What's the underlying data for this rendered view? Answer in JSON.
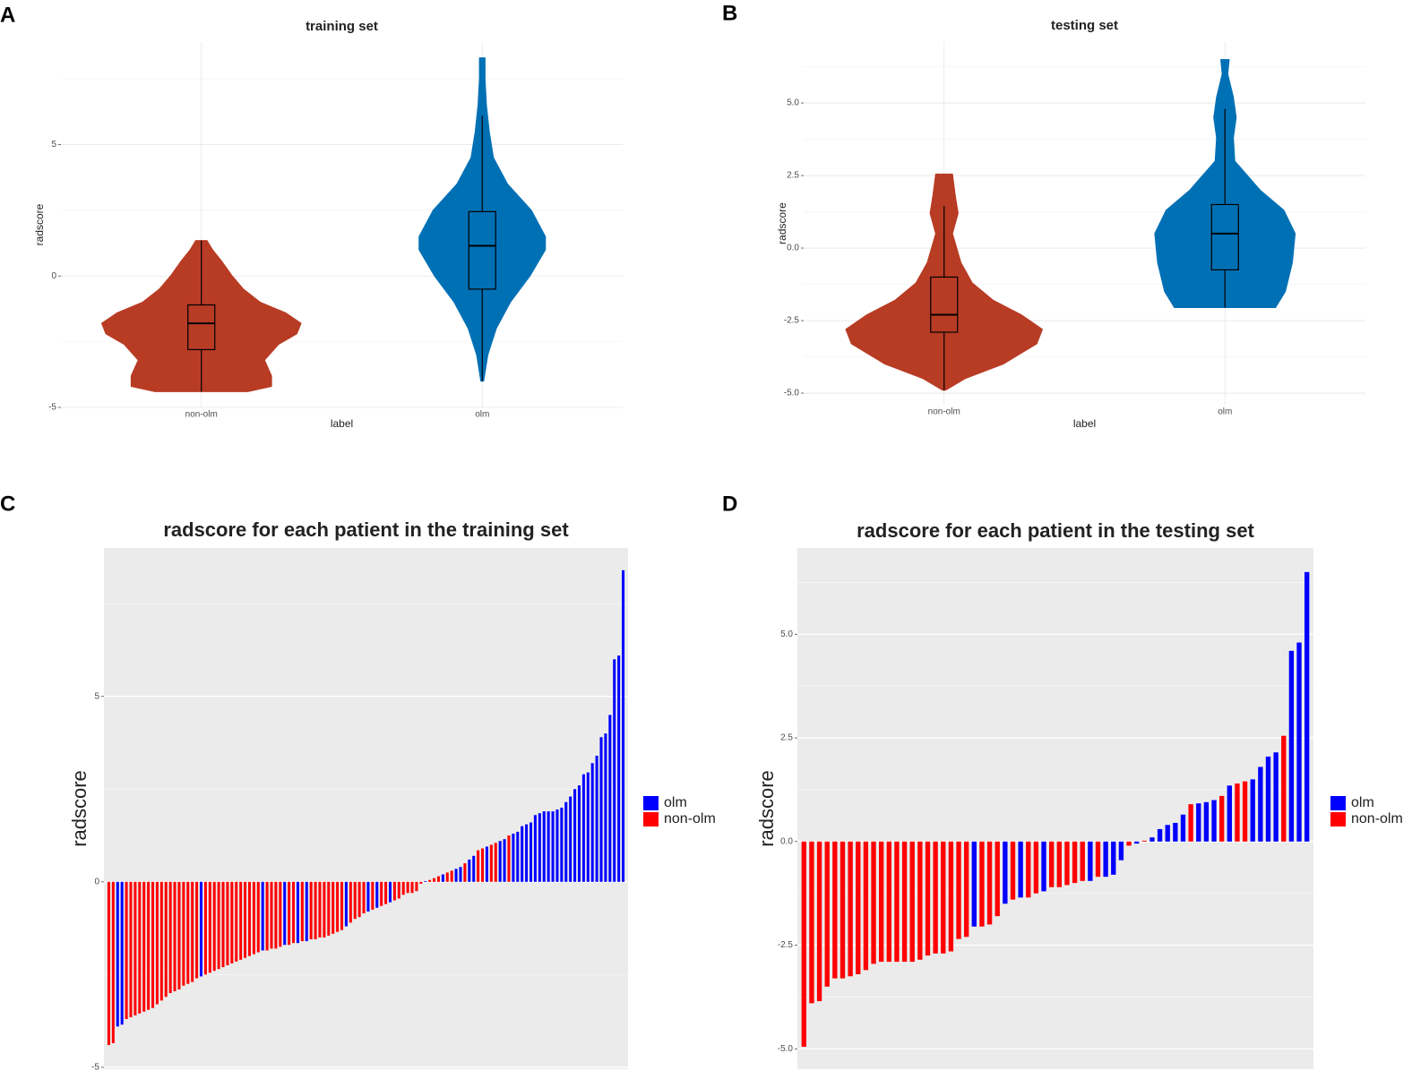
{
  "chart_data": [
    {
      "type": "violin",
      "panel": "A",
      "title": "training set",
      "xlabel": "label",
      "ylabel": "radscore",
      "categories": [
        "non-olm",
        "olm"
      ],
      "colors": [
        "#b83b24",
        "#0070b5"
      ],
      "ylim": [
        -5,
        8.9
      ],
      "yticks": [
        -5,
        0,
        5
      ],
      "minor_yticks": [
        -2.5,
        2.5,
        7.5
      ],
      "grid": true,
      "boxes": [
        {
          "whisker_low": -4.4,
          "q1": -2.8,
          "median": -1.8,
          "q3": -1.1,
          "whisker_high": 1.35
        },
        {
          "whisker_low": -4.0,
          "q1": -0.5,
          "median": 1.15,
          "q3": 2.45,
          "whisker_high": 6.1
        }
      ],
      "violins": [
        {
          "y": [
            -4.4,
            -4.2,
            -3.8,
            -3.2,
            -2.6,
            -2.2,
            -1.8,
            -1.4,
            -1.0,
            -0.5,
            0,
            0.6,
            1.0,
            1.35
          ],
          "width": [
            0.33,
            0.5,
            0.5,
            0.45,
            0.55,
            0.68,
            0.71,
            0.6,
            0.42,
            0.3,
            0.22,
            0.14,
            0.08,
            0.04
          ]
        },
        {
          "y": [
            -4.0,
            -3,
            -2,
            -1,
            0,
            1,
            1.5,
            2.5,
            3.5,
            4.5,
            5.5,
            6.5,
            7.5,
            8.3
          ],
          "width": [
            0.01,
            0.04,
            0.1,
            0.2,
            0.34,
            0.45,
            0.45,
            0.35,
            0.18,
            0.08,
            0.05,
            0.03,
            0.02,
            0.02
          ]
        }
      ]
    },
    {
      "type": "violin",
      "panel": "B",
      "title": "testing set",
      "xlabel": "label",
      "ylabel": "radscore",
      "categories": [
        "non-olm",
        "olm"
      ],
      "colors": [
        "#b83b24",
        "#0070b5"
      ],
      "ylim": [
        -5.4,
        7.1
      ],
      "yticks": [
        {
          "value": -5,
          "label": "-5.0"
        },
        {
          "value": -2.5,
          "label": "-2.5"
        },
        {
          "value": 0,
          "label": "0.0"
        },
        {
          "value": 2.5,
          "label": "2.5"
        },
        {
          "value": 5,
          "label": "5.0"
        }
      ],
      "minor_yticks": [
        -3.75,
        -1.25,
        1.25,
        3.75,
        6.25
      ],
      "grid": true,
      "boxes": [
        {
          "whisker_low": -4.9,
          "q1": -2.9,
          "median": -2.3,
          "q3": -1.0,
          "whisker_high": 1.45
        },
        {
          "whisker_low": -2.05,
          "q1": -0.75,
          "median": 0.5,
          "q3": 1.5,
          "whisker_high": 4.8
        }
      ],
      "violins": [
        {
          "y": [
            -4.9,
            -4.5,
            -4.0,
            -3.3,
            -2.8,
            -2.3,
            -1.8,
            -1.2,
            -0.5,
            0,
            0.5,
            1.2,
            1.8,
            2.55
          ],
          "width": [
            0.01,
            0.15,
            0.42,
            0.66,
            0.7,
            0.55,
            0.35,
            0.2,
            0.12,
            0.09,
            0.06,
            0.1,
            0.08,
            0.06
          ]
        },
        {
          "y": [
            -2.05,
            -1.5,
            -0.5,
            0.5,
            1.3,
            2.0,
            3,
            3.8,
            4.5,
            5.2,
            6,
            6.5
          ],
          "width": [
            0.36,
            0.43,
            0.48,
            0.5,
            0.42,
            0.25,
            0.07,
            0.06,
            0.08,
            0.06,
            0.02,
            0.03
          ]
        }
      ]
    },
    {
      "type": "bar",
      "panel": "C",
      "title": "radscore for each patient in the training set",
      "ylabel": "radscore",
      "ylim": [
        -5.05,
        9
      ],
      "yticks": [
        -5,
        0,
        5
      ],
      "minor_yticks": [
        -2.5,
        2.5,
        7.5
      ],
      "grid": true,
      "legend": "right",
      "series": [
        {
          "name": "olm",
          "color": "#0000ff",
          "values": [
            null,
            null,
            -3.9,
            -3.85,
            null,
            null,
            null,
            null,
            null,
            null,
            null,
            null,
            null,
            null,
            null,
            null,
            null,
            null,
            null,
            null,
            null,
            -2.55,
            null,
            null,
            null,
            null,
            null,
            null,
            null,
            null,
            null,
            null,
            null,
            null,
            null,
            -1.85,
            null,
            null,
            null,
            null,
            -1.7,
            null,
            null,
            -1.65,
            null,
            -1.6,
            null,
            null,
            null,
            null,
            null,
            null,
            null,
            null,
            -1.2,
            null,
            null,
            null,
            null,
            -0.8,
            null,
            -0.7,
            null,
            null,
            -0.55,
            null,
            null,
            null,
            null,
            null,
            null,
            null,
            0.02,
            null,
            null,
            null,
            0.2,
            null,
            null,
            0.35,
            0.4,
            null,
            0.6,
            0.7,
            null,
            null,
            0.95,
            null,
            null,
            1.1,
            1.15,
            null,
            1.3,
            1.35,
            1.5,
            1.55,
            1.6,
            1.8,
            1.85,
            1.9,
            1.9,
            1.9,
            1.95,
            2.0,
            2.15,
            2.3,
            2.5,
            2.6,
            2.9,
            2.95,
            3.2,
            3.4,
            3.9,
            4.0,
            4.5,
            6.0,
            6.1,
            8.4
          ]
        },
        {
          "name": "non-olm",
          "color": "#ff0000",
          "values": [
            -4.4,
            -4.35,
            null,
            null,
            -3.7,
            -3.65,
            -3.6,
            -3.55,
            -3.5,
            -3.45,
            -3.4,
            -3.3,
            -3.2,
            -3.1,
            -3.0,
            -2.95,
            -2.9,
            -2.8,
            -2.75,
            -2.7,
            -2.6,
            null,
            -2.5,
            -2.45,
            -2.4,
            -2.35,
            -2.3,
            -2.25,
            -2.2,
            -2.15,
            -2.1,
            -2.05,
            -2.0,
            -1.95,
            -1.9,
            null,
            -1.85,
            -1.8,
            -1.8,
            -1.75,
            null,
            -1.7,
            -1.65,
            null,
            -1.6,
            null,
            -1.55,
            -1.55,
            -1.5,
            -1.5,
            -1.45,
            -1.4,
            -1.35,
            -1.3,
            null,
            -1.1,
            -1.0,
            -0.95,
            -0.85,
            null,
            -0.75,
            null,
            -0.65,
            -0.6,
            null,
            -0.5,
            -0.45,
            -0.35,
            -0.3,
            -0.3,
            -0.25,
            -0.05,
            null,
            0.05,
            0.1,
            0.15,
            null,
            0.25,
            0.3,
            null,
            null,
            0.5,
            null,
            null,
            0.85,
            0.9,
            null,
            1.0,
            1.05,
            null,
            null,
            1.25,
            null,
            null,
            null,
            null,
            null,
            null,
            null,
            null,
            null,
            null,
            null,
            null,
            null,
            null,
            null,
            null,
            null,
            null,
            null,
            null,
            null,
            null,
            null,
            null,
            null,
            null
          ]
        }
      ]
    },
    {
      "type": "bar",
      "panel": "D",
      "title": "radscore for each patient in the testing set",
      "ylabel": "radscore",
      "ylim": [
        -5.49,
        7.08
      ],
      "yticks": [
        {
          "value": -5,
          "label": "-5.0"
        },
        {
          "value": -2.5,
          "label": "-2.5"
        },
        {
          "value": 0,
          "label": "0.0"
        },
        {
          "value": 2.5,
          "label": "2.5"
        },
        {
          "value": 5,
          "label": "5.0"
        }
      ],
      "minor_yticks": [
        -3.75,
        -1.25,
        1.25,
        3.75,
        6.25
      ],
      "grid": true,
      "legend": "right",
      "series": [
        {
          "name": "olm",
          "color": "#0000ff",
          "values": [
            null,
            null,
            null,
            null,
            null,
            null,
            null,
            null,
            null,
            null,
            null,
            null,
            null,
            null,
            null,
            null,
            null,
            null,
            null,
            null,
            null,
            null,
            -2.05,
            null,
            null,
            null,
            -1.5,
            null,
            -1.35,
            null,
            null,
            -1.2,
            null,
            null,
            null,
            null,
            null,
            -0.95,
            null,
            -0.85,
            -0.8,
            -0.45,
            null,
            -0.05,
            null,
            0.1,
            0.3,
            0.4,
            0.45,
            0.65,
            null,
            0.92,
            0.95,
            1.0,
            null,
            1.35,
            null,
            null,
            1.5,
            1.8,
            2.05,
            2.15,
            null,
            4.6,
            4.8,
            6.5
          ]
        },
        {
          "name": "non-olm",
          "color": "#ff0000",
          "values": [
            -4.95,
            -3.9,
            -3.85,
            -3.5,
            -3.3,
            -3.3,
            -3.25,
            -3.2,
            -3.1,
            -2.95,
            -2.9,
            -2.9,
            -2.9,
            -2.9,
            -2.9,
            -2.85,
            -2.75,
            -2.7,
            -2.7,
            -2.65,
            -2.35,
            -2.3,
            null,
            -2.05,
            -2.0,
            -1.8,
            null,
            -1.4,
            null,
            -1.35,
            -1.25,
            null,
            -1.1,
            -1.1,
            -1.05,
            -1.0,
            -0.95,
            null,
            -0.85,
            null,
            null,
            null,
            -0.1,
            null,
            0.02,
            null,
            null,
            null,
            null,
            null,
            0.9,
            null,
            null,
            null,
            1.1,
            null,
            1.4,
            1.45,
            null,
            null,
            null,
            null,
            2.55,
            null,
            null,
            null
          ]
        }
      ]
    }
  ]
}
